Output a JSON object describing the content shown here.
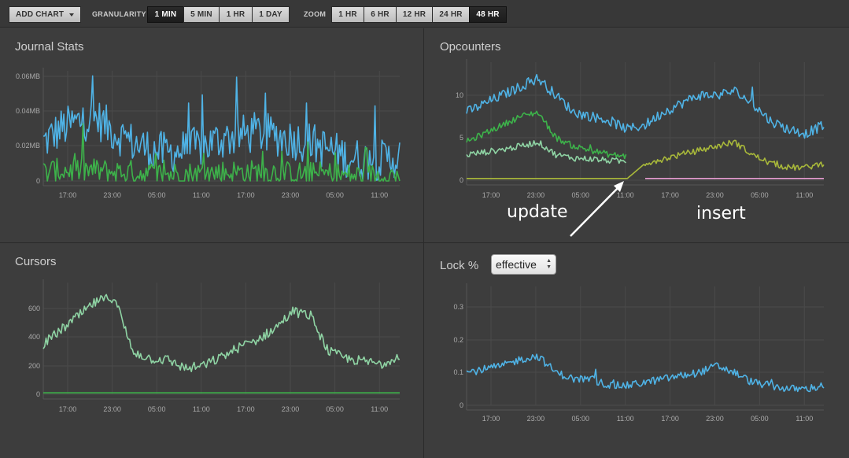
{
  "toolbar": {
    "add_chart": "ADD CHART",
    "granularity_label": "GRANULARITY",
    "granularity_options": [
      "1 MIN",
      "5 MIN",
      "1 HR",
      "1 DAY"
    ],
    "granularity_selected": "1 MIN",
    "zoom_label": "ZOOM",
    "zoom_options": [
      "1 HR",
      "6 HR",
      "12 HR",
      "24 HR",
      "48 HR"
    ],
    "zoom_selected": "48 HR"
  },
  "panels": {
    "journal": {
      "title": "Journal Stats"
    },
    "opcounters": {
      "title": "Opcounters"
    },
    "cursors": {
      "title": "Cursors"
    },
    "lock": {
      "title": "Lock %",
      "select_value": "effective"
    }
  },
  "annotations": {
    "update": "update",
    "insert": "insert"
  },
  "colors": {
    "blue": "#4fb3e6",
    "green": "#3db24a",
    "lightgreen": "#8fd4a4",
    "olive": "#a8b83a",
    "pink": "#e59bd0",
    "grid": "#4a4a4a"
  },
  "chart_data": [
    {
      "type": "line",
      "title": "Journal Stats",
      "x_ticks": [
        "17:00",
        "23:00",
        "05:00",
        "11:00",
        "17:00",
        "23:00",
        "05:00",
        "11:00"
      ],
      "y_ticks": [
        "0",
        "0.02MB",
        "0.04MB",
        "0.06MB"
      ],
      "ylim": [
        0,
        0.06
      ],
      "series": [
        {
          "color": "#4fb3e6",
          "values": [
            0.022,
            0.03,
            0.034,
            0.036,
            0.028,
            0.022,
            0.018,
            0.016,
            0.018,
            0.02,
            0.024,
            0.026,
            0.028,
            0.026,
            0.024,
            0.022,
            0.018,
            0.014,
            0.012,
            0.012,
            0.014
          ]
        },
        {
          "color": "#3db24a",
          "values": [
            0.005,
            0.006,
            0.006,
            0.006,
            0.005,
            0.005,
            0.004,
            0.004,
            0.004,
            0.004,
            0.005,
            0.005,
            0.005,
            0.005,
            0.004,
            0.004,
            0.004,
            0.003,
            0.003,
            0.003,
            0.003
          ]
        }
      ]
    },
    {
      "type": "line",
      "title": "Opcounters",
      "x_ticks": [
        "17:00",
        "23:00",
        "05:00",
        "11:00",
        "17:00",
        "23:00",
        "05:00",
        "11:00"
      ],
      "y_ticks": [
        "0",
        "5",
        "10"
      ],
      "ylim": [
        0,
        12
      ],
      "series": [
        {
          "color": "#4fb3e6",
          "values": [
            8,
            9,
            10,
            11,
            12,
            10,
            8,
            7.5,
            7,
            6,
            6.5,
            8,
            9,
            10,
            10,
            10.5,
            9,
            7,
            6,
            5.5,
            6.5
          ]
        },
        {
          "color": "#3db24a",
          "values": [
            4.5,
            5.5,
            6.5,
            7.5,
            8,
            5,
            4,
            3.5,
            3,
            2.8,
            null,
            null,
            null,
            null,
            null,
            null,
            null,
            null,
            null,
            null,
            null
          ]
        },
        {
          "color": "#8fd4a4",
          "values": [
            3,
            3.3,
            3.6,
            4,
            4.5,
            3,
            2.6,
            2.5,
            2.3,
            2.2,
            null,
            null,
            null,
            null,
            null,
            null,
            null,
            null,
            null,
            null,
            null
          ]
        },
        {
          "color": "#a8b83a",
          "values": [
            0.2,
            0.2,
            0.2,
            0.2,
            0.2,
            0.2,
            0.2,
            0.2,
            0.2,
            0.2,
            2,
            2.5,
            3,
            3.5,
            4,
            4.5,
            3,
            2,
            1.5,
            1.5,
            2
          ]
        },
        {
          "color": "#e59bd0",
          "values": [
            null,
            null,
            null,
            null,
            null,
            null,
            null,
            null,
            null,
            null,
            0.2,
            0.2,
            0.2,
            0.2,
            0.2,
            0.2,
            0.2,
            0.2,
            0.2,
            0.2,
            0.2
          ]
        }
      ]
    },
    {
      "type": "line",
      "title": "Cursors",
      "x_ticks": [
        "17:00",
        "23:00",
        "05:00",
        "11:00",
        "17:00",
        "23:00",
        "05:00",
        "11:00"
      ],
      "y_ticks": [
        "0",
        "200",
        "400",
        "600"
      ],
      "ylim": [
        0,
        750
      ],
      "series": [
        {
          "color": "#8fd4a4",
          "values": [
            350,
            450,
            550,
            650,
            680,
            300,
            250,
            240,
            180,
            200,
            260,
            330,
            380,
            460,
            580,
            550,
            300,
            250,
            230,
            210,
            280
          ]
        },
        {
          "color": "#3db24a",
          "values": [
            10,
            10,
            10,
            10,
            10,
            10,
            10,
            10,
            10,
            10,
            10,
            10,
            10,
            10,
            10,
            10,
            10,
            10,
            10,
            10,
            10
          ]
        }
      ]
    },
    {
      "type": "line",
      "title": "Lock %",
      "x_ticks": [
        "17:00",
        "23:00",
        "05:00",
        "11:00",
        "17:00",
        "23:00",
        "05:00",
        "11:00"
      ],
      "y_ticks": [
        "0",
        "0.1",
        "0.2",
        "0.3"
      ],
      "ylim": [
        0,
        0.34
      ],
      "series": [
        {
          "color": "#4fb3e6",
          "values": [
            0.1,
            0.11,
            0.12,
            0.14,
            0.15,
            0.1,
            0.08,
            0.08,
            0.06,
            0.06,
            0.07,
            0.08,
            0.09,
            0.1,
            0.12,
            0.1,
            0.07,
            0.06,
            0.05,
            0.05,
            0.06
          ]
        }
      ]
    }
  ]
}
